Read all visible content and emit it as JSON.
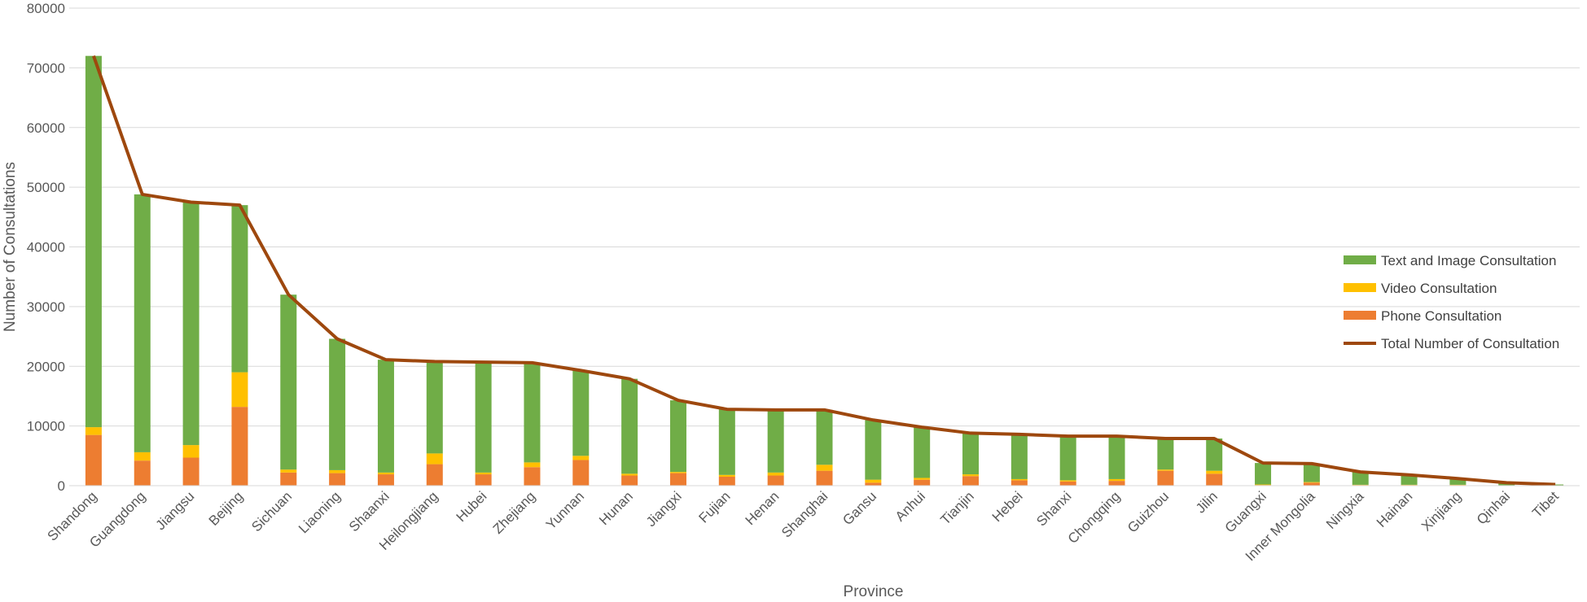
{
  "chart_data": {
    "type": "bar",
    "stacked": true,
    "title": "",
    "xlabel": "Province",
    "ylabel": "Number of Consultations",
    "ylim": [
      0,
      80000
    ],
    "yticks": [
      0,
      10000,
      20000,
      30000,
      40000,
      50000,
      60000,
      70000,
      80000
    ],
    "grid": true,
    "legend_position": "right",
    "categories": [
      "Shandong",
      "Guangdong",
      "Jiangsu",
      "Beijing",
      "Sichuan",
      "Liaoning",
      "Shaanxi",
      "Heilongjiang",
      "Hubei",
      "Zhejiang",
      "Yunnan",
      "Hunan",
      "Jiangxi",
      "Fujian",
      "Henan",
      "Shanghai",
      "Gansu",
      "Anhui",
      "Tianjin",
      "Hebei",
      "Shanxi",
      "Chongqing",
      "Guizhou",
      "Jilin",
      "Guangxi",
      "Inner Mongolia",
      "Ningxia",
      "Hainan",
      "Xinjiang",
      "Qinhai",
      "Tibet"
    ],
    "series": [
      {
        "name": "Phone Consultation",
        "kind": "bar",
        "color": "#ED7D31",
        "values": [
          8500,
          4200,
          4700,
          13200,
          2200,
          2100,
          1900,
          3600,
          1900,
          3100,
          4300,
          1700,
          2100,
          1500,
          1700,
          2500,
          500,
          1000,
          1600,
          900,
          700,
          800,
          2500,
          2000,
          100,
          500,
          100,
          100,
          100,
          50,
          20
        ]
      },
      {
        "name": "Video Consultation",
        "kind": "bar",
        "color": "#FFC000",
        "values": [
          1300,
          1400,
          2100,
          5800,
          500,
          500,
          300,
          1800,
          300,
          800,
          700,
          300,
          200,
          300,
          500,
          1000,
          500,
          300,
          300,
          200,
          200,
          300,
          200,
          500,
          100,
          100,
          50,
          50,
          50,
          20,
          10
        ]
      },
      {
        "name": "Text and Image Consultation",
        "kind": "bar",
        "color": "#70AD47",
        "values": [
          62200,
          43200,
          40700,
          28000,
          29300,
          22000,
          18900,
          15400,
          18500,
          16700,
          14300,
          15900,
          12000,
          11000,
          10500,
          9200,
          10000,
          8500,
          6900,
          7500,
          7400,
          7200,
          5200,
          5400,
          3600,
          3100,
          2150,
          1650,
          1050,
          430,
          170
        ]
      },
      {
        "name": "Total Number of Consultation",
        "kind": "line",
        "color": "#9E480E",
        "values": [
          72000,
          48800,
          47500,
          47000,
          32000,
          24600,
          21100,
          20800,
          20700,
          20600,
          19300,
          17900,
          14300,
          12800,
          12700,
          12700,
          11000,
          9800,
          8800,
          8600,
          8300,
          8300,
          7900,
          7900,
          3800,
          3700,
          2300,
          1800,
          1200,
          500,
          200
        ]
      }
    ],
    "legend": [
      "Text and Image Consultation",
      "Video Consultation",
      "Phone Consultation",
      "Total Number of Consultation"
    ]
  }
}
